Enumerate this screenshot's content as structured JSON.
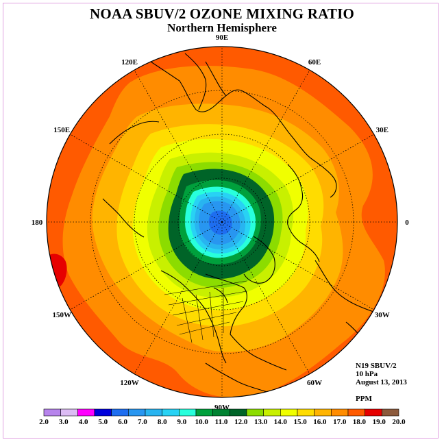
{
  "title": "NOAA SBUV/2 OZONE MIXING RATIO",
  "subtitle": "Northern Hemisphere",
  "info": {
    "satellite": "N19 SBUV/2",
    "level": "10 hPa",
    "date": "August 13, 2013",
    "units": "PPM"
  },
  "longitude_labels": [
    {
      "text": "90E",
      "angle": 90
    },
    {
      "text": "60E",
      "angle": 60
    },
    {
      "text": "30E",
      "angle": 30
    },
    {
      "text": "0",
      "angle": 0
    },
    {
      "text": "30W",
      "angle": -30
    },
    {
      "text": "60W",
      "angle": -60
    },
    {
      "text": "90W",
      "angle": -90
    },
    {
      "text": "120W",
      "angle": -120
    },
    {
      "text": "150W",
      "angle": -150
    },
    {
      "text": "180",
      "angle": 180
    },
    {
      "text": "150E",
      "angle": 150
    },
    {
      "text": "120E",
      "angle": 120
    }
  ],
  "colorbar": {
    "levels": [
      "2.0",
      "3.0",
      "4.0",
      "5.0",
      "6.0",
      "7.0",
      "8.0",
      "9.0",
      "10.0",
      "11.0",
      "12.0",
      "13.0",
      "14.0",
      "15.0",
      "16.0",
      "17.0",
      "18.0",
      "19.0",
      "20.0"
    ],
    "colors": [
      "#b784ec",
      "#dcbcf4",
      "#ff00ff",
      "#0000dc",
      "#1e6ef0",
      "#2896f0",
      "#28b4f0",
      "#28d2f4",
      "#28ffdc",
      "#00a03c",
      "#008232",
      "#006428",
      "#8cdc00",
      "#c8f000",
      "#f0ff00",
      "#ffdc00",
      "#ffb400",
      "#ff8c00",
      "#ff5a00",
      "#e60000",
      "#8c5a3c"
    ]
  },
  "map_colors": {
    "ocean_outer": "#ff5a00",
    "band_17": "#ff8c00",
    "band_16": "#ffb400",
    "band_15": "#ffdc00",
    "band_14": "#f0ff00",
    "band_13": "#c8f000",
    "band_12": "#8cdc00",
    "band_11": "#006428",
    "band_10": "#00a03c",
    "band_9": "#28ffdc",
    "band_8": "#28d2f4",
    "band_7": "#28b4f0",
    "band_6": "#2896f0",
    "band_5": "#1e6ef0",
    "hotspot": "#e60000"
  }
}
